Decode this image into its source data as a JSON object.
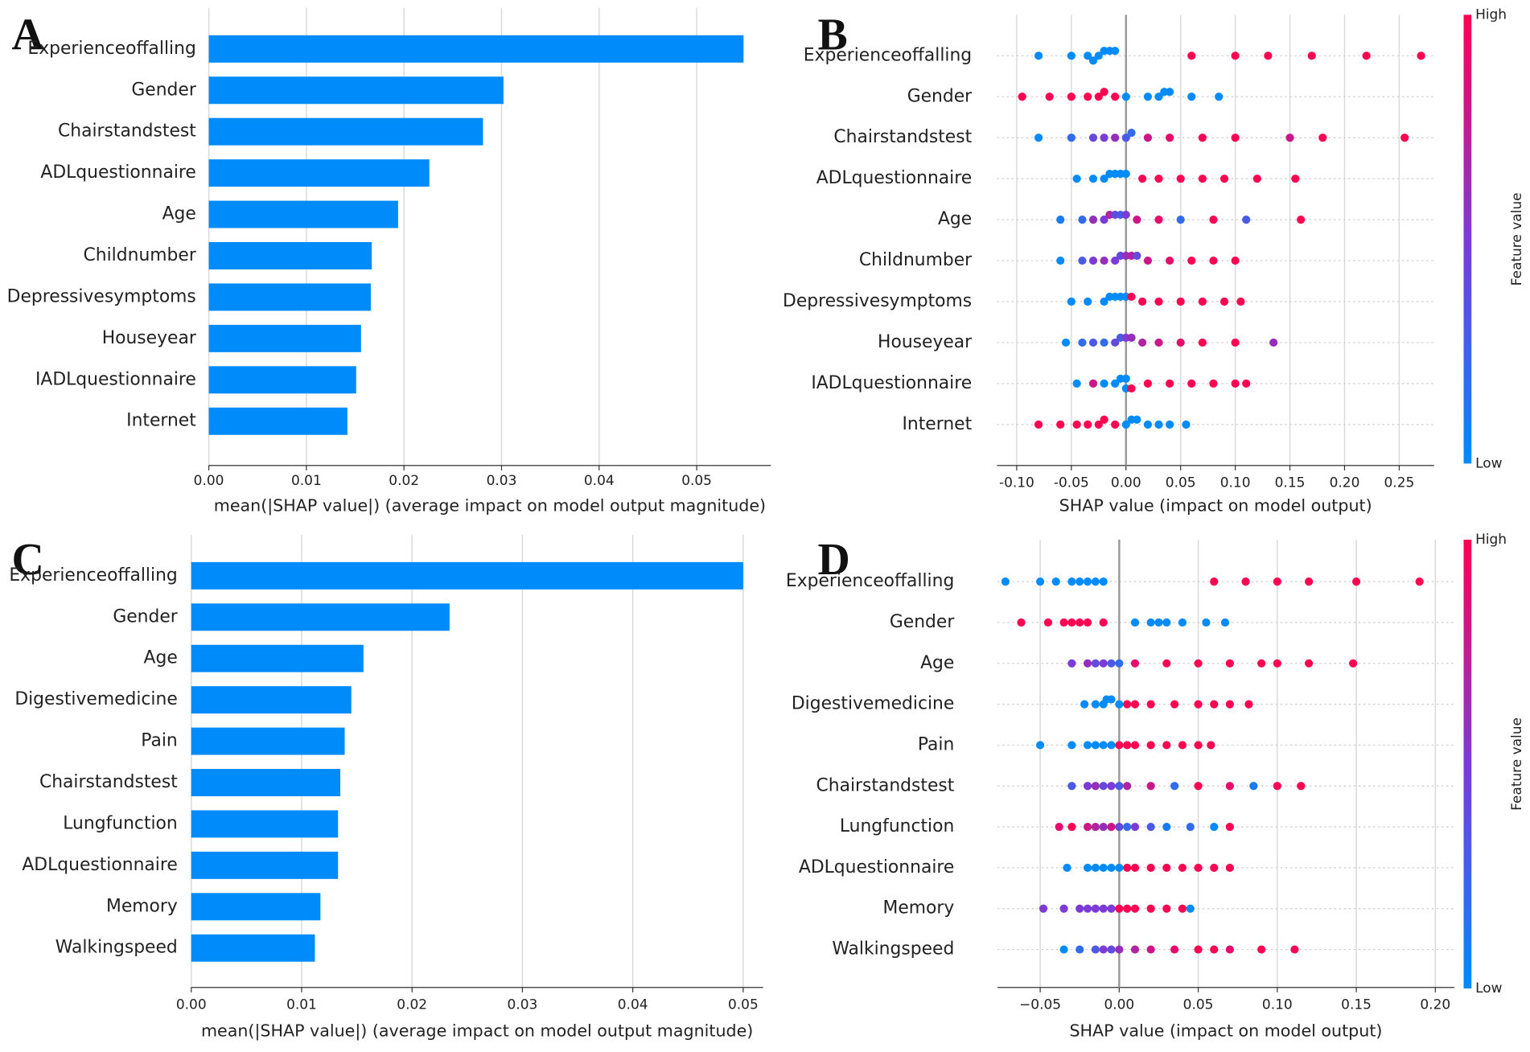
{
  "chart_data": [
    {
      "type": "bar",
      "panel": "A",
      "color": "#008bfb",
      "grid": true,
      "categories": [
        "Experienceoffalling",
        "Gender",
        "Chairstandstest",
        "ADLquestionnaire",
        "Age",
        "Childnumber",
        "Depressivesymptoms",
        "Houseyear",
        "IADLquestionnaire",
        "Internet"
      ],
      "values": [
        0.0548,
        0.0302,
        0.0281,
        0.0226,
        0.0194,
        0.0167,
        0.0166,
        0.0156,
        0.0151,
        0.0142
      ],
      "xlabel": "mean(|SHAP value|) (average impact on model output magnitude)",
      "xlim": [
        0,
        0.0576
      ],
      "xticks": [
        {
          "value": 0,
          "label": "0.00"
        },
        {
          "value": 0.01,
          "label": "0.01"
        },
        {
          "value": 0.02,
          "label": "0.02"
        },
        {
          "value": 0.03,
          "label": "0.03"
        },
        {
          "value": 0.04,
          "label": "0.04"
        },
        {
          "value": 0.05,
          "label": "0.05"
        }
      ]
    },
    {
      "type": "beeswarm",
      "panel": "B",
      "grid": true,
      "categories": [
        "Experienceoffalling",
        "Gender",
        "Chairstandstest",
        "ADLquestionnaire",
        "Age",
        "Childnumber",
        "Depressivesymptoms",
        "Houseyear",
        "IADLquestionnaire",
        "Internet"
      ],
      "values": [
        [
          -0.08,
          -0.05,
          -0.035,
          -0.025,
          -0.02,
          -0.015,
          -0.01,
          -0.03,
          0.06,
          0.1,
          0.13,
          0.17,
          0.22,
          0.27
        ],
        [
          -0.095,
          -0.07,
          -0.05,
          -0.035,
          -0.025,
          -0.02,
          -0.01,
          0.0,
          0.02,
          0.03,
          0.035,
          0.04,
          0.06,
          0.085
        ],
        [
          -0.08,
          -0.05,
          -0.03,
          -0.02,
          -0.01,
          0.0,
          0.005,
          0.02,
          0.04,
          0.07,
          0.1,
          0.15,
          0.18,
          0.255
        ],
        [
          -0.045,
          -0.03,
          -0.02,
          -0.015,
          -0.01,
          -0.005,
          0.0,
          0.015,
          0.03,
          0.05,
          0.07,
          0.09,
          0.12,
          0.155
        ],
        [
          -0.06,
          -0.04,
          -0.03,
          -0.02,
          -0.015,
          -0.01,
          -0.005,
          0.0,
          0.01,
          0.03,
          0.05,
          0.08,
          0.11,
          0.16
        ],
        [
          -0.06,
          -0.04,
          -0.03,
          -0.02,
          -0.01,
          -0.005,
          0.0,
          0.005,
          0.01,
          0.02,
          0.04,
          0.06,
          0.08,
          0.1
        ],
        [
          -0.05,
          -0.035,
          -0.02,
          -0.015,
          -0.01,
          -0.005,
          0.0,
          0.005,
          0.015,
          0.03,
          0.05,
          0.07,
          0.09,
          0.105
        ],
        [
          -0.055,
          -0.04,
          -0.03,
          -0.02,
          -0.01,
          -0.005,
          0.0,
          0.005,
          0.015,
          0.03,
          0.05,
          0.07,
          0.1,
          0.135
        ],
        [
          -0.045,
          -0.03,
          -0.02,
          -0.01,
          -0.005,
          0.0,
          0.0,
          0.005,
          0.02,
          0.04,
          0.06,
          0.08,
          0.1,
          0.11
        ],
        [
          -0.08,
          -0.06,
          -0.045,
          -0.035,
          -0.025,
          -0.02,
          -0.01,
          0.0,
          0.005,
          0.01,
          0.02,
          0.03,
          0.04,
          0.055
        ]
      ],
      "feature_values": [
        [
          0,
          0,
          0,
          0,
          0,
          0,
          0,
          0,
          1,
          1,
          1,
          1,
          1,
          1
        ],
        [
          1,
          1,
          1,
          1,
          1,
          1,
          1,
          0,
          0,
          0,
          0,
          0,
          0,
          0
        ],
        [
          0,
          0.2,
          0.4,
          0.5,
          0.6,
          0.3,
          0.2,
          0.8,
          0.9,
          1,
          1,
          0.8,
          1,
          1
        ],
        [
          0,
          0,
          0,
          0,
          0,
          0,
          0,
          1,
          1,
          1,
          1,
          1,
          1,
          1
        ],
        [
          0.1,
          0.2,
          0.6,
          0.5,
          0.7,
          0.4,
          0.3,
          0.5,
          0.8,
          0.9,
          0.2,
          1,
          0.3,
          1
        ],
        [
          0,
          0.3,
          0.5,
          0.6,
          0.5,
          0.4,
          0.6,
          0.7,
          0.4,
          0.8,
          0.9,
          1,
          1,
          1
        ],
        [
          0,
          0,
          0,
          0,
          0,
          0,
          0,
          1,
          1,
          1,
          1,
          1,
          1,
          1
        ],
        [
          0,
          0.2,
          0.3,
          0.2,
          0.4,
          0.3,
          0.5,
          0.6,
          0.7,
          0.8,
          0.9,
          1,
          1,
          0.6
        ],
        [
          0,
          0.8,
          0,
          0,
          0,
          0,
          0,
          1,
          1,
          1,
          1,
          1,
          1,
          1
        ],
        [
          1,
          1,
          1,
          1,
          1,
          1,
          1,
          0,
          0,
          0,
          0,
          0,
          0,
          0
        ]
      ],
      "xlabel": "SHAP value (impact on model output)",
      "xlim": [
        -0.118,
        0.282
      ],
      "xticks": [
        {
          "value": -0.1,
          "label": "-0.10"
        },
        {
          "value": -0.05,
          "label": "-0.05"
        },
        {
          "value": 0,
          "label": "0.00"
        },
        {
          "value": 0.05,
          "label": "0.05"
        },
        {
          "value": 0.1,
          "label": "0.10"
        },
        {
          "value": 0.15,
          "label": "0.15"
        },
        {
          "value": 0.2,
          "label": "0.20"
        },
        {
          "value": 0.25,
          "label": "0.25"
        }
      ],
      "colorbar": {
        "label": "Feature value",
        "high": "High",
        "low": "Low",
        "colors": [
          "#008bfb",
          "#7c3ad6",
          "#ff0052"
        ]
      }
    },
    {
      "type": "bar",
      "panel": "C",
      "color": "#008bfb",
      "grid": true,
      "categories": [
        "Experienceoffalling",
        "Gender",
        "Age",
        "Digestivemedicine",
        "Pain",
        "Chairstandstest",
        "Lungfunction",
        "ADLquestionnaire",
        "Memory",
        "Walkingspeed"
      ],
      "values": [
        0.05,
        0.0234,
        0.0156,
        0.0145,
        0.0139,
        0.0135,
        0.0133,
        0.0133,
        0.0117,
        0.0112
      ],
      "xlabel": "mean(|SHAP value|) (average impact on model output magnitude)",
      "xlim": [
        0,
        0.0518
      ],
      "xticks": [
        {
          "value": 0,
          "label": "0.00"
        },
        {
          "value": 0.01,
          "label": "0.01"
        },
        {
          "value": 0.02,
          "label": "0.02"
        },
        {
          "value": 0.03,
          "label": "0.03"
        },
        {
          "value": 0.04,
          "label": "0.04"
        },
        {
          "value": 0.05,
          "label": "0.05"
        }
      ]
    },
    {
      "type": "beeswarm",
      "panel": "D",
      "grid": true,
      "categories": [
        "Experienceoffalling",
        "Gender",
        "Age",
        "Digestivemedicine",
        "Pain",
        "Chairstandstest",
        "Lungfunction",
        "ADLquestionnaire",
        "Memory",
        "Walkingspeed"
      ],
      "values": [
        [
          -0.072,
          -0.05,
          -0.04,
          -0.03,
          -0.025,
          -0.02,
          -0.015,
          -0.01,
          0.06,
          0.08,
          0.1,
          0.12,
          0.15,
          0.19
        ],
        [
          -0.062,
          -0.045,
          -0.035,
          -0.03,
          -0.025,
          -0.02,
          -0.01,
          0.01,
          0.02,
          0.025,
          0.03,
          0.04,
          0.055,
          0.067
        ],
        [
          -0.03,
          -0.02,
          -0.015,
          -0.01,
          -0.005,
          0.0,
          0.01,
          0.03,
          0.05,
          0.07,
          0.09,
          0.1,
          0.12,
          0.148
        ],
        [
          -0.022,
          -0.015,
          -0.01,
          -0.008,
          -0.005,
          0.0,
          0.005,
          0.01,
          0.02,
          0.035,
          0.05,
          0.06,
          0.07,
          0.082
        ],
        [
          -0.05,
          -0.03,
          -0.02,
          -0.015,
          -0.01,
          -0.005,
          0.0,
          0.005,
          0.01,
          0.02,
          0.03,
          0.04,
          0.05,
          0.058
        ],
        [
          -0.03,
          -0.02,
          -0.015,
          -0.01,
          -0.005,
          0.0,
          0.005,
          0.02,
          0.035,
          0.05,
          0.07,
          0.085,
          0.1,
          0.115
        ],
        [
          -0.038,
          -0.03,
          -0.02,
          -0.015,
          -0.01,
          -0.005,
          0.0,
          0.005,
          0.01,
          0.02,
          0.03,
          0.045,
          0.06,
          0.07
        ],
        [
          -0.033,
          -0.02,
          -0.015,
          -0.01,
          -0.005,
          0.0,
          0.005,
          0.01,
          0.02,
          0.03,
          0.04,
          0.05,
          0.06,
          0.07
        ],
        [
          -0.048,
          -0.035,
          -0.025,
          -0.02,
          -0.015,
          -0.01,
          -0.005,
          0.0,
          0.005,
          0.01,
          0.02,
          0.03,
          0.04,
          0.045
        ],
        [
          -0.035,
          -0.025,
          -0.015,
          -0.01,
          -0.005,
          0.0,
          0.01,
          0.02,
          0.035,
          0.05,
          0.06,
          0.07,
          0.09,
          0.111
        ]
      ],
      "feature_values": [
        [
          0,
          0,
          0,
          0,
          0,
          0,
          0,
          0,
          1,
          1,
          1,
          1,
          1,
          1
        ],
        [
          1,
          1,
          1,
          1,
          1,
          1,
          1,
          0,
          0,
          0,
          0,
          0,
          0,
          0
        ],
        [
          0.5,
          0.6,
          0.4,
          0.5,
          0.3,
          0.2,
          0.9,
          1,
          1,
          1,
          1,
          1,
          1,
          1
        ],
        [
          0,
          0,
          0,
          0,
          0,
          0,
          1,
          1,
          1,
          1,
          1,
          1,
          1,
          1
        ],
        [
          0,
          0,
          0,
          0,
          0,
          0,
          1,
          1,
          1,
          1,
          1,
          1,
          1,
          1
        ],
        [
          0.3,
          0.5,
          0.6,
          0.4,
          0.5,
          0.3,
          0.7,
          0.8,
          0.2,
          1,
          0.9,
          0.1,
          1,
          1
        ],
        [
          0.9,
          1,
          0.8,
          0.7,
          0.6,
          0.8,
          0.4,
          0.2,
          0.5,
          0.3,
          0.1,
          0.2,
          0,
          1
        ],
        [
          0,
          0,
          0,
          0,
          0,
          0,
          1,
          1,
          1,
          1,
          1,
          1,
          1,
          1
        ],
        [
          0.5,
          0.5,
          0.5,
          0.5,
          0.5,
          0.5,
          0.5,
          1,
          1,
          1,
          1,
          1,
          1,
          0
        ],
        [
          0,
          0.2,
          0.3,
          0.5,
          0.4,
          0.6,
          0.7,
          0.8,
          0.9,
          1,
          1,
          0.9,
          1,
          1
        ]
      ],
      "xlabel": "SHAP value (impact on model output)",
      "xlim": [
        -0.077,
        0.212
      ],
      "xticks": [
        {
          "value": -0.05,
          "label": "−0.05"
        },
        {
          "value": 0,
          "label": "0.00"
        },
        {
          "value": 0.05,
          "label": "0.05"
        },
        {
          "value": 0.1,
          "label": "0.10"
        },
        {
          "value": 0.15,
          "label": "0.15"
        },
        {
          "value": 0.2,
          "label": "0.20"
        }
      ],
      "colorbar": {
        "label": "Feature value",
        "high": "High",
        "low": "Low",
        "colors": [
          "#008bfb",
          "#7c3ad6",
          "#ff0052"
        ]
      }
    }
  ]
}
